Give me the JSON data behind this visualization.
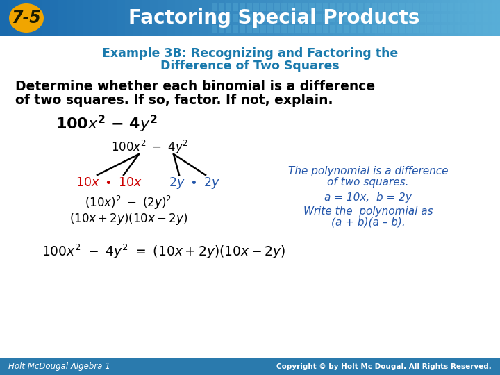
{
  "bg_color": "#ffffff",
  "header_bg_left": "#1a6aad",
  "header_bg_right": "#4a9fcc",
  "header_text": "Factoring Special Products",
  "header_num": "7-5",
  "header_num_bg": "#f0a500",
  "header_text_color": "#ffffff",
  "example_title_line1": "Example 3B: Recognizing and Factoring the",
  "example_title_line2": "Difference of Two Squares",
  "example_title_color": "#1a7aad",
  "body_text_line1": "Determine whether each binomial is a difference",
  "body_text_line2": "of two squares. If so, factor. If not, explain.",
  "body_text_color": "#000000",
  "tree_left_color": "#cc0000",
  "tree_right_color": "#2255aa",
  "tree_text_color": "#000000",
  "note_color": "#2255aa",
  "final_color": "#000000",
  "footer_left": "Holt McDougal Algebra 1",
  "footer_right": "Copyright © by Holt Mc Dougal. All Rights Reserved.",
  "footer_bg": "#2a7aad",
  "footer_text_color": "#ffffff"
}
